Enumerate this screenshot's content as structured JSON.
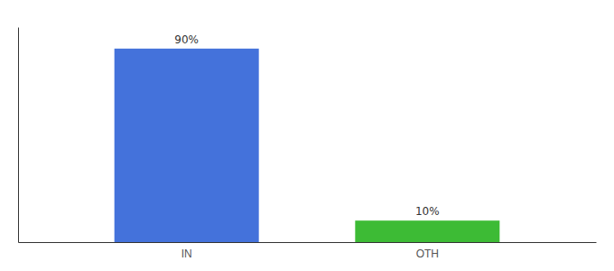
{
  "chart_data": {
    "type": "bar",
    "categories": [
      "IN",
      "OTH"
    ],
    "values": [
      90,
      10
    ],
    "colors": [
      "#4472db",
      "#3dbb35"
    ],
    "value_labels": [
      "90%",
      "10%"
    ],
    "data_labels": true,
    "ylim": [
      0,
      100
    ],
    "grid": false,
    "tick_labels": "x"
  }
}
